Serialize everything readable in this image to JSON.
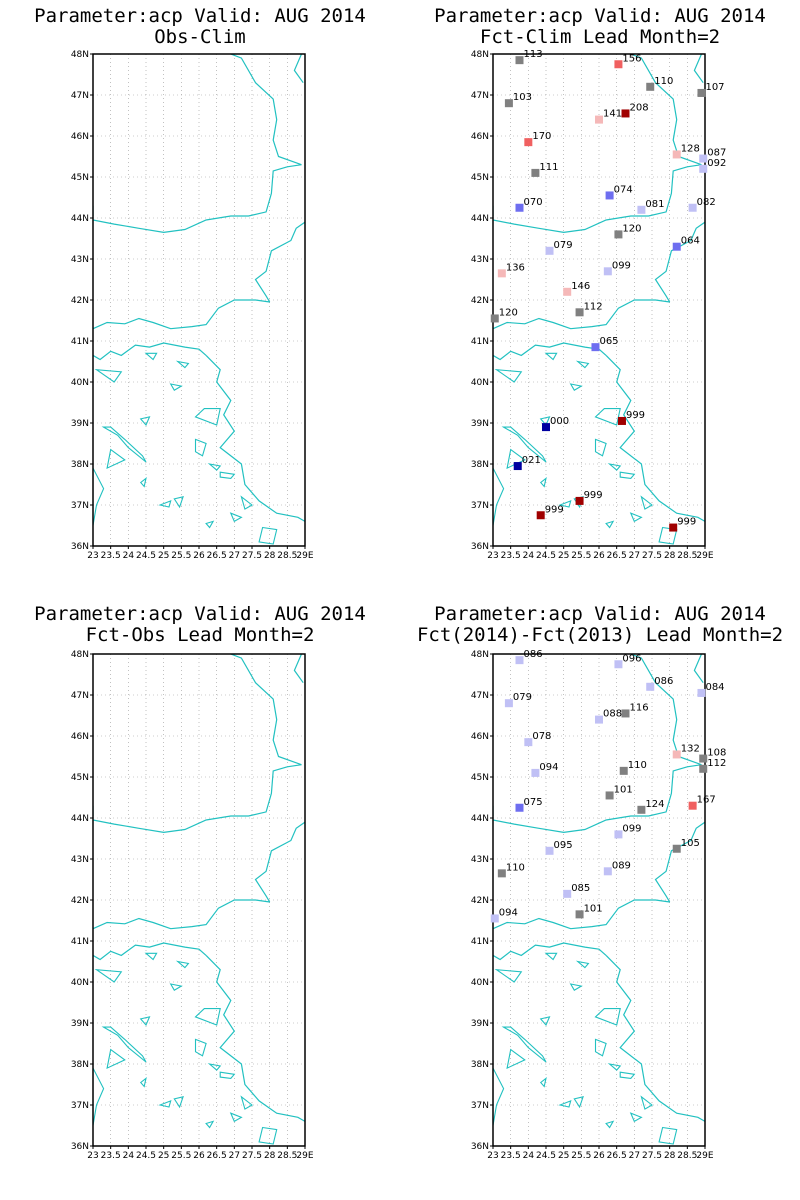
{
  "colors": {
    "coast": "#22c1c1",
    "grid": "#999999",
    "frame": "#000000",
    "class_colors": {
      "darkred": "#a00000",
      "red": "#f06060",
      "pink": "#f5b8b8",
      "gray": "#808080",
      "lightblue": "#c0c0f5",
      "blue": "#6e6ef0",
      "darkblue": "#0000a0"
    }
  },
  "map": {
    "lon_range": [
      23,
      29
    ],
    "lat_range": [
      36,
      48
    ],
    "lon_step": 0.5,
    "lat_step": 1,
    "lon_ticks": [
      "23",
      "23.5",
      "24",
      "24.5",
      "25",
      "25.5",
      "26",
      "26.5",
      "27",
      "27.5",
      "28",
      "28.5",
      "29E"
    ],
    "lat_ticks": [
      "36N",
      "37N",
      "38N",
      "39N",
      "40N",
      "41N",
      "42N",
      "43N",
      "44N",
      "45N",
      "46N",
      "47N",
      "48N"
    ]
  },
  "panels": [
    {
      "title_line1": "Parameter:acp Valid: AUG 2014",
      "title_line2": "Obs-Clim",
      "stations": []
    },
    {
      "title_line1": "Parameter:acp Valid: AUG 2014",
      "title_line2": "Fct-Clim Lead Month=2",
      "stations": [
        {
          "lon": 23.75,
          "lat": 47.85,
          "label": "113",
          "class": "gray"
        },
        {
          "lon": 26.55,
          "lat": 47.75,
          "label": "156",
          "class": "red"
        },
        {
          "lon": 27.45,
          "lat": 47.2,
          "label": "110",
          "class": "gray"
        },
        {
          "lon": 28.9,
          "lat": 47.05,
          "label": "107",
          "class": "gray"
        },
        {
          "lon": 23.45,
          "lat": 46.8,
          "label": "103",
          "class": "gray"
        },
        {
          "lon": 26.75,
          "lat": 46.55,
          "label": "208",
          "class": "darkred"
        },
        {
          "lon": 26.0,
          "lat": 46.4,
          "label": "141",
          "class": "pink"
        },
        {
          "lon": 24.0,
          "lat": 45.85,
          "label": "170",
          "class": "red"
        },
        {
          "lon": 28.2,
          "lat": 45.55,
          "label": "128",
          "class": "pink"
        },
        {
          "lon": 28.95,
          "lat": 45.45,
          "label": "087",
          "class": "lightblue"
        },
        {
          "lon": 28.95,
          "lat": 45.2,
          "label": "092",
          "class": "lightblue"
        },
        {
          "lon": 24.2,
          "lat": 45.1,
          "label": "111",
          "class": "gray"
        },
        {
          "lon": 26.3,
          "lat": 44.55,
          "label": "074",
          "class": "blue"
        },
        {
          "lon": 23.75,
          "lat": 44.25,
          "label": "070",
          "class": "blue"
        },
        {
          "lon": 27.2,
          "lat": 44.2,
          "label": "081",
          "class": "lightblue"
        },
        {
          "lon": 28.65,
          "lat": 44.25,
          "label": "082",
          "class": "lightblue"
        },
        {
          "lon": 26.55,
          "lat": 43.6,
          "label": "120",
          "class": "gray"
        },
        {
          "lon": 24.6,
          "lat": 43.2,
          "label": "079",
          "class": "lightblue"
        },
        {
          "lon": 28.2,
          "lat": 43.3,
          "label": "064",
          "class": "blue"
        },
        {
          "lon": 26.25,
          "lat": 42.7,
          "label": "099",
          "class": "lightblue"
        },
        {
          "lon": 23.25,
          "lat": 42.65,
          "label": "136",
          "class": "pink"
        },
        {
          "lon": 25.1,
          "lat": 42.2,
          "label": "146",
          "class": "pink"
        },
        {
          "lon": 25.45,
          "lat": 41.7,
          "label": "112",
          "class": "gray"
        },
        {
          "lon": 23.05,
          "lat": 41.55,
          "label": "120",
          "class": "gray"
        },
        {
          "lon": 25.9,
          "lat": 40.85,
          "label": "065",
          "class": "blue"
        },
        {
          "lon": 26.65,
          "lat": 39.05,
          "label": "999",
          "class": "darkred"
        },
        {
          "lon": 24.5,
          "lat": 38.9,
          "label": "000",
          "class": "darkblue"
        },
        {
          "lon": 23.7,
          "lat": 37.95,
          "label": "021",
          "class": "darkblue"
        },
        {
          "lon": 25.45,
          "lat": 37.1,
          "label": "999",
          "class": "darkred"
        },
        {
          "lon": 24.35,
          "lat": 36.75,
          "label": "999",
          "class": "darkred"
        },
        {
          "lon": 28.1,
          "lat": 36.45,
          "label": "999",
          "class": "darkred"
        }
      ]
    },
    {
      "title_line1": "Parameter:acp Valid: AUG 2014",
      "title_line2": "Fct-Obs Lead Month=2",
      "stations": []
    },
    {
      "title_line1": "Parameter:acp Valid: AUG 2014",
      "title_line2": "Fct(2014)-Fct(2013) Lead Month=2",
      "stations": [
        {
          "lon": 23.75,
          "lat": 47.85,
          "label": "086",
          "class": "lightblue"
        },
        {
          "lon": 26.55,
          "lat": 47.75,
          "label": "096",
          "class": "lightblue"
        },
        {
          "lon": 27.45,
          "lat": 47.2,
          "label": "086",
          "class": "lightblue"
        },
        {
          "lon": 28.9,
          "lat": 47.05,
          "label": "084",
          "class": "lightblue"
        },
        {
          "lon": 23.45,
          "lat": 46.8,
          "label": "079",
          "class": "lightblue"
        },
        {
          "lon": 26.75,
          "lat": 46.55,
          "label": "116",
          "class": "gray"
        },
        {
          "lon": 26.0,
          "lat": 46.4,
          "label": "088",
          "class": "lightblue"
        },
        {
          "lon": 24.0,
          "lat": 45.85,
          "label": "078",
          "class": "lightblue"
        },
        {
          "lon": 28.2,
          "lat": 45.55,
          "label": "132",
          "class": "pink"
        },
        {
          "lon": 28.95,
          "lat": 45.45,
          "label": "108",
          "class": "gray"
        },
        {
          "lon": 28.95,
          "lat": 45.2,
          "label": "112",
          "class": "gray"
        },
        {
          "lon": 24.2,
          "lat": 45.1,
          "label": "094",
          "class": "lightblue"
        },
        {
          "lon": 26.3,
          "lat": 44.55,
          "label": "101",
          "class": "gray"
        },
        {
          "lon": 26.7,
          "lat": 45.15,
          "label": "110",
          "class": "gray"
        },
        {
          "lon": 23.75,
          "lat": 44.25,
          "label": "075",
          "class": "blue"
        },
        {
          "lon": 27.2,
          "lat": 44.2,
          "label": "124",
          "class": "gray"
        },
        {
          "lon": 28.65,
          "lat": 44.3,
          "label": "167",
          "class": "red"
        },
        {
          "lon": 26.55,
          "lat": 43.6,
          "label": "099",
          "class": "lightblue"
        },
        {
          "lon": 24.6,
          "lat": 43.2,
          "label": "095",
          "class": "lightblue"
        },
        {
          "lon": 28.2,
          "lat": 43.25,
          "label": "105",
          "class": "gray"
        },
        {
          "lon": 26.25,
          "lat": 42.7,
          "label": "089",
          "class": "lightblue"
        },
        {
          "lon": 23.25,
          "lat": 42.65,
          "label": "110",
          "class": "gray"
        },
        {
          "lon": 25.1,
          "lat": 42.15,
          "label": "085",
          "class": "lightblue"
        },
        {
          "lon": 25.45,
          "lat": 41.65,
          "label": "101",
          "class": "gray"
        },
        {
          "lon": 23.05,
          "lat": 41.55,
          "label": "094",
          "class": "lightblue"
        }
      ]
    }
  ]
}
